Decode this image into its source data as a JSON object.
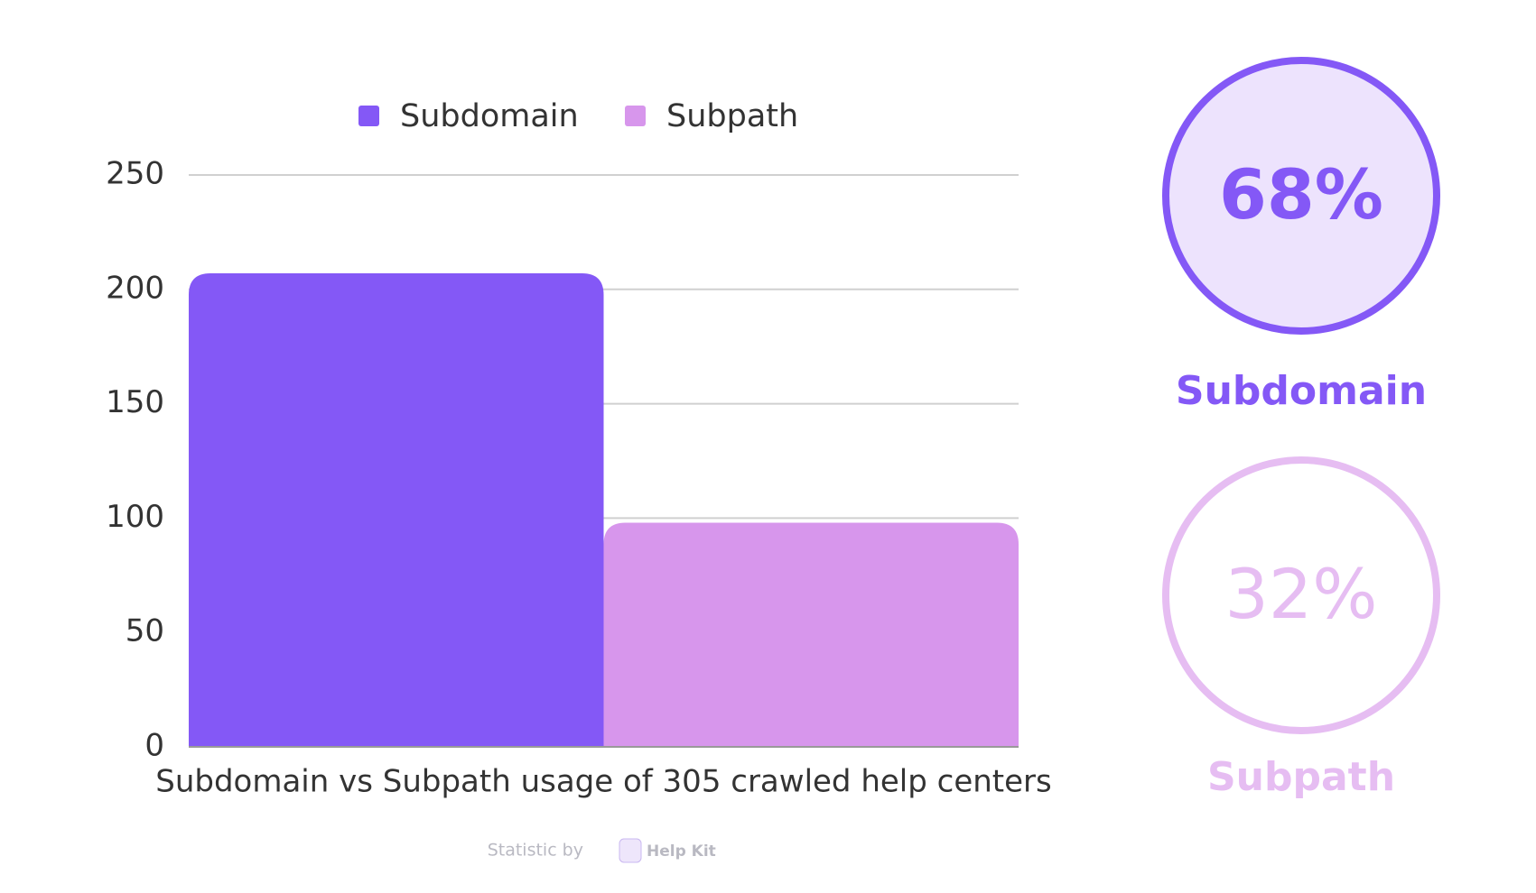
{
  "chart_data": {
    "type": "bar",
    "categories": [
      "Subdomain vs Subpath usage of 305 crawled help centers"
    ],
    "series": [
      {
        "name": "Subdomain",
        "color": "#8458f6",
        "values": [
          207
        ]
      },
      {
        "name": "Subpath",
        "color": "#d796ec",
        "values": [
          98
        ]
      }
    ],
    "ylim": [
      0,
      250
    ],
    "yticks": [
      0,
      50,
      100,
      150,
      200,
      250
    ],
    "grid": true,
    "legend": "top"
  },
  "summary": [
    {
      "name": "Subdomain",
      "value": 68,
      "value_label": "68%",
      "color": "#8458f6",
      "fill": "#ede3fd"
    },
    {
      "name": "Subpath",
      "value": 32,
      "value_label": "32%",
      "color": "#e6bdf2",
      "fill": "#ffffff"
    }
  ],
  "footer": {
    "prefix": "Statistic by",
    "brand": "Help Kit"
  }
}
